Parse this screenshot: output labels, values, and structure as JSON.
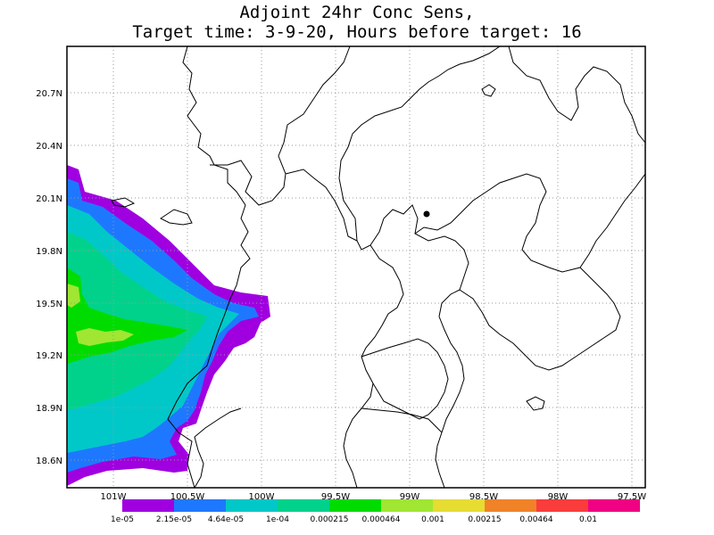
{
  "title": {
    "line1": "Adjoint 24hr Conc Sens,",
    "line2": "Target time: 3-9-20, Hours before target: 16"
  },
  "map": {
    "lat_labels": [
      "20.7N",
      "20.4N",
      "20.1N",
      "19.8N",
      "19.5N",
      "19.2N",
      "18.9N",
      "18.6N"
    ],
    "lon_labels": [
      "101W",
      "100.5W",
      "100W",
      "99.5W",
      "99W",
      "98.5W",
      "98W",
      "97.5W"
    ]
  },
  "colorbar": {
    "labels": [
      "1e-05",
      "2.15e-05",
      "4.64e-05",
      "1e-04",
      "0.000215",
      "0.000464",
      "0.001",
      "0.00215",
      "0.00464",
      "0.01"
    ],
    "colors": [
      "#a000e0",
      "#1e78ff",
      "#00c8c8",
      "#00d28c",
      "#00dc00",
      "#a0e632",
      "#e6dc32",
      "#f08228",
      "#fa3c3c",
      "#f00082"
    ]
  },
  "plume_colors": {
    "c1": "#a000e0",
    "c2": "#1e78ff",
    "c3": "#00c8c8",
    "c4": "#00d28c",
    "c5": "#00dc00",
    "c6": "#a0e632"
  }
}
